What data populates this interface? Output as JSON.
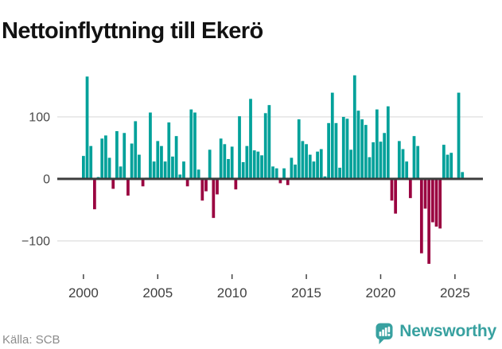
{
  "title": "Nettoinflyttning till Ekerö",
  "source": "Källa: SCB",
  "branding": {
    "name": "Newsworthy"
  },
  "colors": {
    "positive_bar": "#00A19A",
    "negative_bar": "#9A0340",
    "zero_line": "#3d3d3d",
    "gridline": "#e3e3e3",
    "axis_text": "#404040",
    "brand_teal": "#38a1a0",
    "source_text": "#8c8c8c",
    "title_text": "#121212"
  },
  "chart_data": {
    "type": "bar",
    "title": "Nettoinflyttning till Ekerö",
    "frequency": "quarterly",
    "start_year": 2000,
    "start_quarter": 1,
    "x_ticks": [
      {
        "label": "2000",
        "bar_index": 0
      },
      {
        "label": "2005",
        "bar_index": 20
      },
      {
        "label": "2010",
        "bar_index": 40
      },
      {
        "label": "2015",
        "bar_index": 60
      },
      {
        "label": "2020",
        "bar_index": 80
      },
      {
        "label": "2025",
        "bar_index": 100
      }
    ],
    "y_ticks": [
      {
        "label": "100",
        "value": 100
      },
      {
        "label": "0",
        "value": 0
      },
      {
        "label": "−100",
        "value": -100
      }
    ],
    "ylim": [
      -160,
      190
    ],
    "grid": "horizontal",
    "legend": "none",
    "values": [
      37,
      165,
      53,
      -49,
      3,
      65,
      70,
      34,
      -16,
      77,
      20,
      74,
      -27,
      57,
      93,
      39,
      -12,
      2,
      107,
      28,
      61,
      53,
      28,
      91,
      36,
      69,
      7,
      28,
      -12,
      112,
      107,
      15,
      -35,
      -20,
      47,
      -63,
      -25,
      65,
      56,
      32,
      52,
      -17,
      101,
      27,
      53,
      129,
      46,
      44,
      38,
      106,
      119,
      20,
      17,
      -7,
      17,
      -10,
      34,
      23,
      96,
      61,
      56,
      39,
      28,
      44,
      48,
      4,
      90,
      139,
      90,
      18,
      100,
      97,
      47,
      167,
      110,
      96,
      87,
      35,
      59,
      112,
      60,
      74,
      117,
      -35,
      -56,
      61,
      48,
      28,
      -31,
      69,
      53,
      -120,
      -48,
      -137,
      -70,
      -77,
      -80,
      55,
      39,
      42,
      2,
      139,
      11
    ]
  }
}
